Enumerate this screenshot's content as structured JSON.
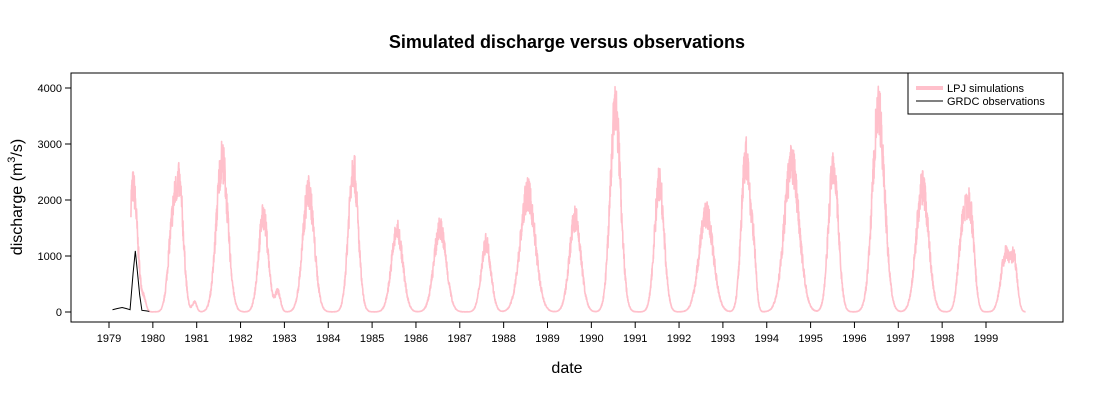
{
  "chart_data": {
    "type": "line",
    "title": "Simulated discharge versus observations",
    "xlabel": "date",
    "ylabel_main": "discharge (m",
    "ylabel_sup": "3",
    "ylabel_end": "/s)",
    "xlim": [
      1978.5,
      2000.0
    ],
    "ylim": [
      -100,
      4250
    ],
    "x_ticks": [
      1979,
      1980,
      1981,
      1982,
      1983,
      1984,
      1985,
      1986,
      1987,
      1988,
      1989,
      1990,
      1991,
      1992,
      1993,
      1994,
      1995,
      1996,
      1997,
      1998,
      1999
    ],
    "y_ticks": [
      0,
      1000,
      2000,
      3000,
      4000
    ],
    "legend_position": "top-right",
    "legend": [
      {
        "label": "LPJ simulations",
        "color": "#FFC0CB"
      },
      {
        "label": "GRDC observations",
        "color": "#000000"
      }
    ],
    "series": [
      {
        "name": "LPJ simulations",
        "color": "#FFC0CB",
        "peaks": [
          {
            "x": 1979.55,
            "y": 2550,
            "w": 0.1
          },
          {
            "x": 1979.8,
            "y": 200,
            "w": 0.05
          },
          {
            "x": 1980.45,
            "y": 1700,
            "w": 0.1
          },
          {
            "x": 1980.62,
            "y": 2150,
            "w": 0.09
          },
          {
            "x": 1980.95,
            "y": 200,
            "w": 0.05
          },
          {
            "x": 1981.58,
            "y": 3100,
            "w": 0.13
          },
          {
            "x": 1982.52,
            "y": 1950,
            "w": 0.11
          },
          {
            "x": 1982.85,
            "y": 400,
            "w": 0.06
          },
          {
            "x": 1983.55,
            "y": 2450,
            "w": 0.13
          },
          {
            "x": 1984.57,
            "y": 2950,
            "w": 0.11
          },
          {
            "x": 1985.57,
            "y": 1650,
            "w": 0.13
          },
          {
            "x": 1986.55,
            "y": 1700,
            "w": 0.14
          },
          {
            "x": 1987.6,
            "y": 1400,
            "w": 0.11
          },
          {
            "x": 1988.55,
            "y": 2400,
            "w": 0.17
          },
          {
            "x": 1989.63,
            "y": 1900,
            "w": 0.13
          },
          {
            "x": 1990.55,
            "y": 4100,
            "w": 0.12
          },
          {
            "x": 1991.55,
            "y": 2600,
            "w": 0.11
          },
          {
            "x": 1992.62,
            "y": 2000,
            "w": 0.16
          },
          {
            "x": 1993.52,
            "y": 3150,
            "w": 0.1
          },
          {
            "x": 1993.7,
            "y": 1000,
            "w": 0.06
          },
          {
            "x": 1994.57,
            "y": 3000,
            "w": 0.17
          },
          {
            "x": 1995.52,
            "y": 3000,
            "w": 0.11
          },
          {
            "x": 1996.55,
            "y": 4050,
            "w": 0.14
          },
          {
            "x": 1997.55,
            "y": 2550,
            "w": 0.14
          },
          {
            "x": 1998.47,
            "y": 1650,
            "w": 0.1
          },
          {
            "x": 1998.65,
            "y": 1780,
            "w": 0.09
          },
          {
            "x": 1999.45,
            "y": 1180,
            "w": 0.11
          },
          {
            "x": 1999.65,
            "y": 900,
            "w": 0.07
          }
        ]
      },
      {
        "name": "GRDC observations",
        "color": "#000000",
        "points": [
          [
            1979.08,
            40
          ],
          [
            1979.18,
            60
          ],
          [
            1979.3,
            80
          ],
          [
            1979.4,
            60
          ],
          [
            1979.48,
            40
          ],
          [
            1979.55,
            700
          ],
          [
            1979.6,
            1090
          ],
          [
            1979.65,
            700
          ],
          [
            1979.7,
            300
          ],
          [
            1979.75,
            30
          ],
          [
            1979.85,
            20
          ],
          [
            1979.92,
            10
          ]
        ]
      }
    ]
  }
}
